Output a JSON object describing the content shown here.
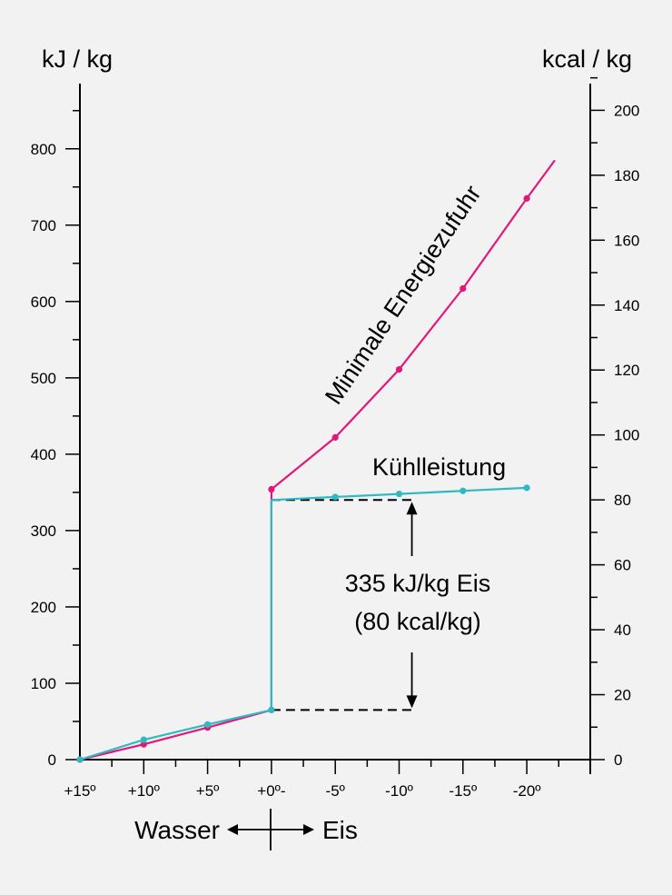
{
  "chart_data": {
    "type": "line",
    "left_axis_label": "kJ / kg",
    "right_axis_label": "kcal / kg",
    "x_tick_labels": [
      "+15º",
      "+10º",
      "+5º",
      "+0º-",
      "-5º",
      "-10º",
      "-15º",
      "-20º"
    ],
    "x_values": [
      15,
      10,
      5,
      0,
      -5,
      -10,
      -15,
      -20
    ],
    "left_ticks": [
      0,
      100,
      200,
      300,
      400,
      500,
      600,
      700,
      800
    ],
    "left_ylim": [
      0,
      900
    ],
    "right_ticks": [
      0,
      20,
      40,
      60,
      80,
      100,
      120,
      140,
      160,
      180,
      200
    ],
    "right_ylim": [
      0,
      215
    ],
    "series": [
      {
        "name": "Minimale Energiezufuhr",
        "color": "#e0187a",
        "markers": [
          [
            15,
            0
          ],
          [
            10,
            20
          ],
          [
            5,
            42
          ],
          [
            0,
            65
          ],
          [
            0,
            354
          ],
          [
            -5,
            422
          ],
          [
            -10,
            511
          ],
          [
            -15,
            617
          ],
          [
            -20,
            735
          ]
        ],
        "points": [
          [
            15,
            0
          ],
          [
            10,
            20
          ],
          [
            5,
            42
          ],
          [
            0,
            65
          ],
          [
            0,
            354
          ],
          [
            -5,
            422
          ],
          [
            -10,
            511
          ],
          [
            -15,
            617
          ],
          [
            -20,
            735
          ],
          [
            -22.2,
            785
          ]
        ]
      },
      {
        "name": "Kühlleistung",
        "color": "#2fbac3",
        "markers": [
          [
            15,
            0
          ],
          [
            10,
            26
          ],
          [
            5,
            46
          ],
          [
            0,
            65
          ],
          [
            -5,
            344
          ],
          [
            -10,
            348
          ],
          [
            -15,
            352
          ],
          [
            -20,
            356
          ]
        ],
        "points": [
          [
            15,
            0
          ],
          [
            10,
            26
          ],
          [
            5,
            46
          ],
          [
            0,
            65
          ],
          [
            0,
            340
          ],
          [
            -5,
            344
          ],
          [
            -10,
            348
          ],
          [
            -15,
            352
          ],
          [
            -20,
            356
          ]
        ]
      }
    ],
    "annotation": {
      "line1": "335 kJ/kg Eis",
      "line2": "(80 kcal/kg)",
      "from": 65,
      "to": 340
    },
    "direction": {
      "left": "Wasser",
      "right": "Eis"
    }
  }
}
